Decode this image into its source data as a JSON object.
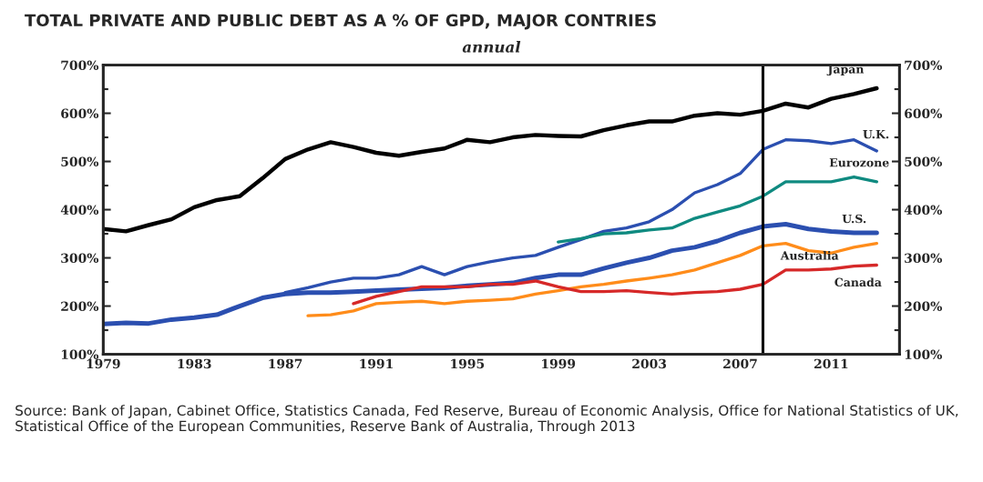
{
  "chart_data": {
    "type": "line",
    "title": "TOTAL PRIVATE AND PUBLIC DEBT AS A % OF GPD, MAJOR CONTRIES",
    "subtitle": "annual",
    "xlim": [
      1979,
      2014
    ],
    "xticks": [
      1979,
      1983,
      1987,
      1991,
      1995,
      1999,
      2003,
      2007,
      2011
    ],
    "ylim": [
      100,
      700
    ],
    "yticks": [
      {
        "value": 100,
        "label": "100%"
      },
      {
        "value": 200,
        "label": "200%"
      },
      {
        "value": 300,
        "label": "300%"
      },
      {
        "value": 400,
        "label": "400%"
      },
      {
        "value": 500,
        "label": "500%"
      },
      {
        "value": 600,
        "label": "600%"
      },
      {
        "value": 700,
        "label": "700%"
      }
    ],
    "y2lim": [
      100,
      700
    ],
    "y2ticks": [
      {
        "value": 100,
        "label": "100%"
      },
      {
        "value": 200,
        "label": "200%"
      },
      {
        "value": 300,
        "label": "300%"
      },
      {
        "value": 400,
        "label": "400%"
      },
      {
        "value": 500,
        "label": "500%"
      },
      {
        "value": 600,
        "label": "600%"
      },
      {
        "value": 700,
        "label": "700%"
      }
    ],
    "grid": false,
    "legend": false,
    "line_style": "solid",
    "marker": "none",
    "ref_lines": [
      {
        "axis": "x",
        "value": 2008,
        "color": "#000000"
      }
    ],
    "series": [
      {
        "name": "Japan",
        "color": "#000000",
        "x": [
          1979,
          1980,
          1981,
          1982,
          1983,
          1984,
          1985,
          1986,
          1987,
          1988,
          1989,
          1990,
          1991,
          1992,
          1993,
          1994,
          1995,
          1996,
          1997,
          1998,
          1999,
          2000,
          2001,
          2002,
          2003,
          2004,
          2005,
          2006,
          2007,
          2008,
          2009,
          2010,
          2011,
          2012,
          2013
        ],
        "values": [
          360,
          355,
          368,
          380,
          405,
          420,
          428,
          465,
          505,
          525,
          540,
          530,
          518,
          512,
          520,
          527,
          545,
          540,
          550,
          555,
          553,
          552,
          565,
          575,
          583,
          583,
          595,
          600,
          597,
          605,
          620,
          612,
          630,
          640,
          652
        ]
      },
      {
        "name": "U.K.",
        "color": "#2b4fb0",
        "x": [
          1987,
          1988,
          1989,
          1990,
          1991,
          1992,
          1993,
          1994,
          1995,
          1996,
          1997,
          1998,
          1999,
          2000,
          2001,
          2002,
          2003,
          2004,
          2005,
          2006,
          2007,
          2008,
          2009,
          2010,
          2011,
          2012,
          2013
        ],
        "values": [
          228,
          238,
          250,
          258,
          258,
          265,
          282,
          265,
          282,
          292,
          300,
          305,
          322,
          338,
          355,
          362,
          375,
          400,
          435,
          452,
          475,
          525,
          545,
          543,
          537,
          545,
          522
        ]
      },
      {
        "name": "Eurozone",
        "color": "#0f8a80",
        "x": [
          1999,
          2000,
          2001,
          2002,
          2003,
          2004,
          2005,
          2006,
          2007,
          2008,
          2009,
          2010,
          2011,
          2012,
          2013
        ],
        "values": [
          333,
          340,
          350,
          352,
          358,
          362,
          382,
          395,
          408,
          428,
          458,
          458,
          458,
          468,
          458
        ]
      },
      {
        "name": "U.S.",
        "color": "#2b4fb0",
        "x": [
          1979,
          1980,
          1981,
          1982,
          1983,
          1984,
          1985,
          1986,
          1987,
          1988,
          1989,
          1990,
          1991,
          1992,
          1993,
          1994,
          1995,
          1996,
          1997,
          1998,
          1999,
          2000,
          2001,
          2002,
          2003,
          2004,
          2005,
          2006,
          2007,
          2008,
          2009,
          2010,
          2011,
          2012,
          2013
        ],
        "values": [
          163,
          165,
          164,
          172,
          176,
          182,
          200,
          217,
          225,
          228,
          228,
          230,
          232,
          234,
          236,
          238,
          242,
          245,
          248,
          258,
          265,
          265,
          278,
          290,
          300,
          315,
          322,
          335,
          352,
          365,
          370,
          360,
          355,
          352,
          352
        ]
      },
      {
        "name": "Australia",
        "color": "#ff8c1a",
        "x": [
          1988,
          1989,
          1990,
          1991,
          1992,
          1993,
          1994,
          1995,
          1996,
          1997,
          1998,
          1999,
          2000,
          2001,
          2002,
          2003,
          2004,
          2005,
          2006,
          2007,
          2008,
          2009,
          2010,
          2011,
          2012,
          2013
        ],
        "values": [
          180,
          182,
          190,
          205,
          208,
          210,
          205,
          210,
          212,
          215,
          225,
          232,
          240,
          245,
          252,
          258,
          265,
          275,
          290,
          305,
          325,
          330,
          315,
          310,
          322,
          330
        ]
      },
      {
        "name": "Canada",
        "color": "#d62828",
        "x": [
          1990,
          1991,
          1992,
          1993,
          1994,
          1995,
          1996,
          1997,
          1998,
          1999,
          2000,
          2001,
          2002,
          2003,
          2004,
          2005,
          2006,
          2007,
          2008,
          2009,
          2010,
          2011,
          2012,
          2013
        ],
        "values": [
          205,
          220,
          230,
          240,
          240,
          240,
          245,
          245,
          252,
          240,
          230,
          230,
          232,
          228,
          225,
          228,
          230,
          235,
          245,
          275,
          275,
          277,
          283,
          285
        ]
      }
    ],
    "annotations": [
      "Source: Bank of Japan, Cabinet Office, Statistics Canada, Fed Reserve, Bureau of Economic Analysis, Office for National Statistics of UK, Statistical Office of the European Communities, Reserve Bank of Australia, Through 2013"
    ]
  }
}
